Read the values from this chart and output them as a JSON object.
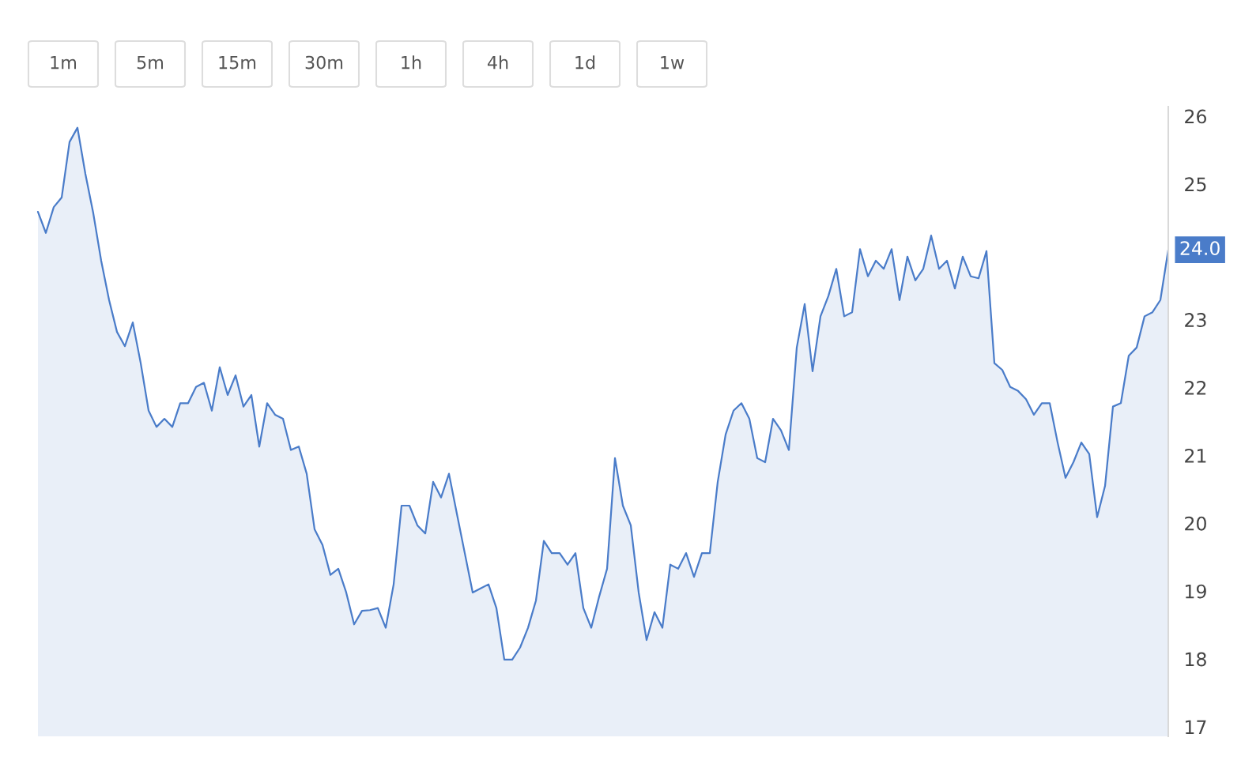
{
  "chart_data": {
    "type": "area",
    "categories": [
      null,
      null,
      null,
      null,
      null,
      null,
      null,
      null,
      null,
      null,
      null,
      null,
      null,
      null,
      null,
      null,
      null,
      null,
      null,
      null,
      null,
      null,
      null,
      null,
      null,
      null,
      null,
      null,
      null,
      null,
      null,
      null,
      null,
      null,
      null,
      null,
      null,
      null,
      null,
      null,
      null,
      null,
      null,
      null,
      null,
      null,
      null,
      null,
      null,
      null,
      null,
      null,
      null,
      null,
      null,
      null,
      null,
      null,
      null,
      null,
      null,
      null,
      null,
      null,
      null,
      null,
      null,
      null,
      null,
      null,
      null,
      null,
      null,
      null,
      null,
      null,
      null,
      null,
      null,
      null,
      null,
      null,
      null,
      null,
      null,
      null,
      null,
      null,
      null,
      null,
      null,
      null,
      null,
      null,
      null,
      null,
      null,
      null,
      null,
      null,
      null,
      null,
      null,
      null,
      null,
      null,
      null,
      null,
      null,
      null,
      null,
      null,
      null,
      null,
      null,
      null,
      null,
      null,
      null,
      null,
      null,
      null,
      null,
      null,
      null,
      null,
      null,
      null,
      null,
      null,
      null,
      null,
      null,
      null,
      null,
      null,
      null,
      null,
      null,
      null,
      null,
      null,
      null,
      null
    ],
    "series": [
      {
        "color": "#4a7cc9",
        "values": [
          24.59,
          24.28,
          24.66,
          24.8,
          25.62,
          25.83,
          25.15,
          24.57,
          23.87,
          23.29,
          22.82,
          22.61,
          22.96,
          22.36,
          21.66,
          21.42,
          21.54,
          21.42,
          21.77,
          21.77,
          22.01,
          22.07,
          21.66,
          22.3,
          21.89,
          22.18,
          21.72,
          21.89,
          21.13,
          21.77,
          21.6,
          21.54,
          21.08,
          21.13,
          20.73,
          19.91,
          19.68,
          19.24,
          19.33,
          18.98,
          18.51,
          18.71,
          18.72,
          18.75,
          18.46,
          19.1,
          20.26,
          20.26,
          19.97,
          19.85,
          20.61,
          20.38,
          20.73,
          20.14,
          19.56,
          18.98,
          19.04,
          19.1,
          18.75,
          17.99,
          17.99,
          18.17,
          18.46,
          18.86,
          19.74,
          19.56,
          19.56,
          19.39,
          19.56,
          18.75,
          18.46,
          18.92,
          19.33,
          20.96,
          20.26,
          19.97,
          18.98,
          18.28,
          18.69,
          18.46,
          19.39,
          19.33,
          19.56,
          19.21,
          19.56,
          19.56,
          20.61,
          21.31,
          21.66,
          21.77,
          21.54,
          20.96,
          20.9,
          21.54,
          21.37,
          21.08,
          22.59,
          23.23,
          22.24,
          23.05,
          23.35,
          23.75,
          23.05,
          23.11,
          24.04,
          23.64,
          23.87,
          23.75,
          24.04,
          23.29,
          23.93,
          23.58,
          23.75,
          24.24,
          23.75,
          23.87,
          23.46,
          23.93,
          23.64,
          23.61,
          24.01,
          22.36,
          22.26,
          22.01,
          21.95,
          21.83,
          21.6,
          21.77,
          21.77,
          21.19,
          20.67,
          20.9,
          21.19,
          21.02,
          20.09,
          20.55,
          21.72,
          21.77,
          22.47,
          22.59,
          23.05,
          23.11,
          23.29,
          24.03
        ]
      }
    ],
    "ylim": [
      16.86,
      26.14
    ],
    "yticks": [
      17,
      18,
      19,
      20,
      21,
      22,
      23,
      25,
      26
    ],
    "tick_labels": "y",
    "grid": false,
    "legend": false,
    "annotations": [
      "1m",
      "5m",
      "15m",
      "30m",
      "1h",
      "4h",
      "1d",
      "1w",
      "24.0"
    ]
  }
}
